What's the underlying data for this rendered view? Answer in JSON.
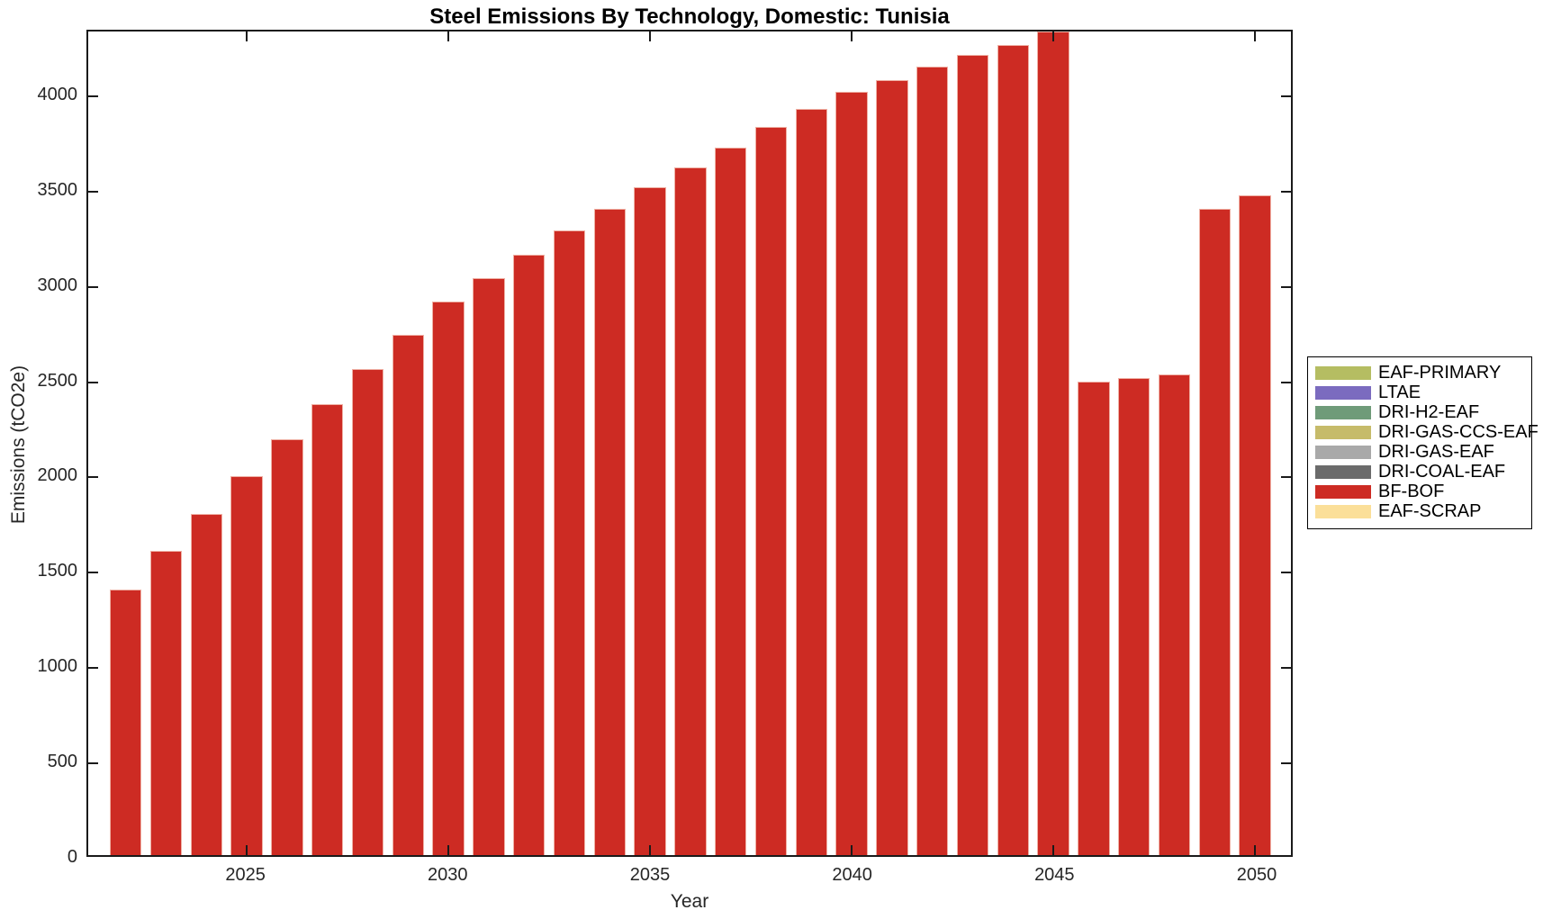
{
  "title": "Steel Emissions By Technology, Domestic: Tunisia",
  "axes": {
    "xlabel": "Year",
    "ylabel": "Emissions (tCO2e)",
    "y_ticks": [
      0,
      500,
      1000,
      1500,
      2000,
      2500,
      3000,
      3500,
      4000
    ],
    "x_ticks": [
      2025,
      2030,
      2035,
      2040,
      2045,
      2050
    ],
    "ylim": [
      0,
      4340
    ],
    "xlim": [
      2021.07,
      2050.89
    ],
    "grid": "off",
    "box": "on"
  },
  "legend": {
    "position": "outside-right",
    "items": [
      {
        "label": "EAF-PRIMARY",
        "color": "#b5bd62"
      },
      {
        "label": "LTAE",
        "color": "#7b6bbf"
      },
      {
        "label": "DRI-H2-EAF",
        "color": "#6f9b79"
      },
      {
        "label": "DRI-GAS-CCS-EAF",
        "color": "#c6bb6a"
      },
      {
        "label": "DRI-GAS-EAF",
        "color": "#a9a9a9"
      },
      {
        "label": "DRI-COAL-EAF",
        "color": "#6b6b6b"
      },
      {
        "label": "BF-BOF",
        "color": "#cd2b23"
      },
      {
        "label": "EAF-SCRAP",
        "color": "#fbdf99"
      }
    ]
  },
  "chart_data": {
    "type": "bar",
    "title": "Steel Emissions By Technology, Domestic: Tunisia",
    "xlabel": "Year",
    "ylabel": "Emissions (tCO2e)",
    "bar_width_years": 0.79,
    "x": [
      2022,
      2023,
      2024,
      2025,
      2026,
      2027,
      2028,
      2029,
      2030,
      2031,
      2032,
      2033,
      2034,
      2035,
      2036,
      2037,
      2038,
      2039,
      2040,
      2041,
      2042,
      2043,
      2044,
      2045,
      2046,
      2047,
      2048,
      2049,
      2050
    ],
    "series": [
      {
        "name": "BF-BOF",
        "color": "#cd2b23",
        "values": [
          1400,
          1605,
          1800,
          1995,
          2190,
          2375,
          2560,
          2740,
          2915,
          3040,
          3165,
          3290,
          3405,
          3520,
          3625,
          3730,
          3835,
          3930,
          4020,
          4085,
          4155,
          4215,
          4270,
          4340,
          2495,
          2515,
          2535,
          3405,
          3475
        ]
      }
    ],
    "note": "Only the BF-BOF series has visible (non-zero) bars; all other legend technologies show no visible contribution."
  }
}
